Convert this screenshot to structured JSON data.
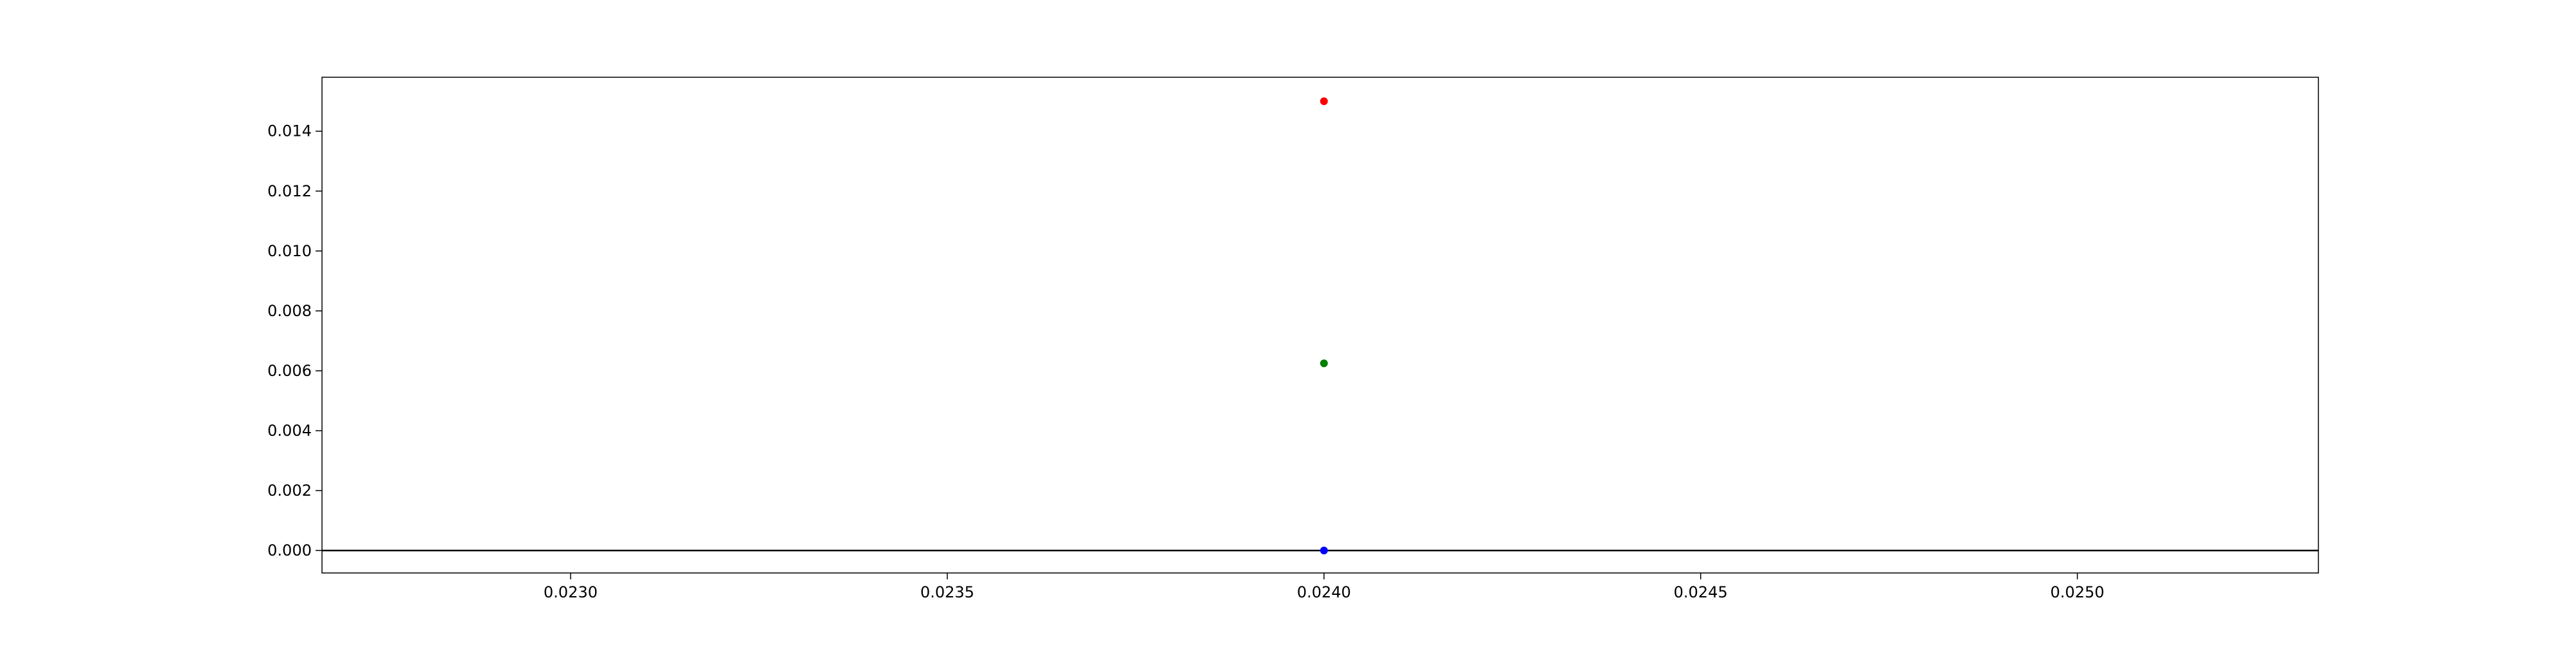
{
  "chart_data": {
    "type": "scatter",
    "title": "",
    "xlabel": "",
    "ylabel": "",
    "xlim": [
      0.02267,
      0.02532
    ],
    "ylim": [
      -0.00075,
      0.0158
    ],
    "grid": false,
    "xticks": [
      {
        "value": 0.023,
        "label": "0.0230"
      },
      {
        "value": 0.0235,
        "label": "0.0235"
      },
      {
        "value": 0.024,
        "label": "0.0240"
      },
      {
        "value": 0.0245,
        "label": "0.0245"
      },
      {
        "value": 0.025,
        "label": "0.0250"
      }
    ],
    "yticks": [
      {
        "value": 0.0,
        "label": "0.000"
      },
      {
        "value": 0.002,
        "label": "0.002"
      },
      {
        "value": 0.004,
        "label": "0.004"
      },
      {
        "value": 0.006,
        "label": "0.006"
      },
      {
        "value": 0.008,
        "label": "0.008"
      },
      {
        "value": 0.01,
        "label": "0.010"
      },
      {
        "value": 0.012,
        "label": "0.012"
      },
      {
        "value": 0.014,
        "label": "0.014"
      }
    ],
    "hlines": [
      {
        "y": 0.0,
        "color": "#000000"
      }
    ],
    "points": [
      {
        "x": 0.024,
        "y": 0.015,
        "color": "#ff0000"
      },
      {
        "x": 0.024,
        "y": 0.00625,
        "color": "#008000"
      },
      {
        "x": 0.024,
        "y": 0.0,
        "color": "#0000ff"
      }
    ]
  }
}
